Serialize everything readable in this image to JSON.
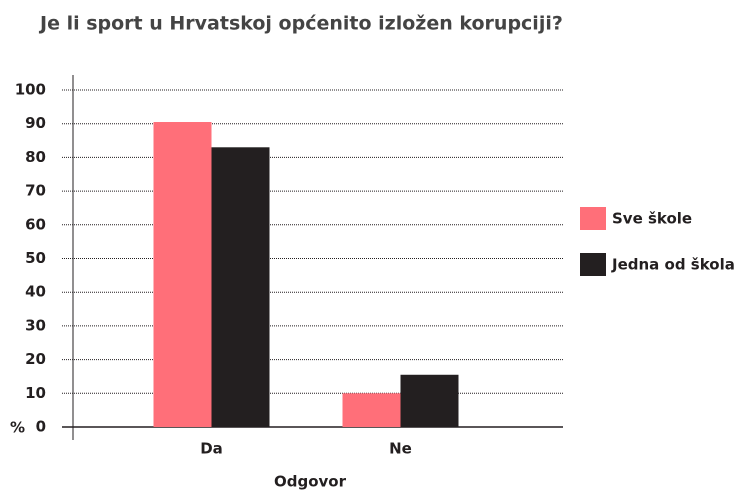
{
  "chart_data": {
    "type": "bar",
    "title": "Je li sport u Hrvatskoj općenito izložen korupciji?",
    "xlabel": "Odgovor",
    "ylabel": "%",
    "categories": [
      "Da",
      "Ne"
    ],
    "series": [
      {
        "name": "Sve škole",
        "color": "#ff6f79",
        "values": [
          90.5,
          10
        ]
      },
      {
        "name": "Jedna od škola",
        "color": "#231f20",
        "values": [
          83,
          15.5
        ]
      }
    ],
    "ylim": [
      0,
      100
    ],
    "yticks": [
      0,
      10,
      20,
      30,
      40,
      50,
      60,
      70,
      80,
      90,
      100
    ],
    "grid": true,
    "legend": "right"
  }
}
